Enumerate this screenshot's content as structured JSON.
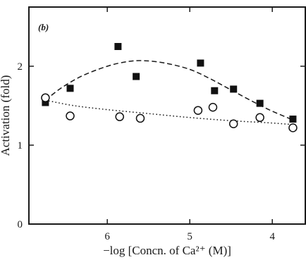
{
  "chart_data": {
    "type": "scatter",
    "panel_label": "(b)",
    "xlabel": "−log [Concn. of Ca²⁺ (M)]",
    "ylabel": "Activation (fold)",
    "x_reversed": true,
    "xlim": [
      6.95,
      3.6
    ],
    "ylim": [
      0,
      2.75
    ],
    "xticks": [
      6,
      5,
      4
    ],
    "xtick_labels": [
      "6",
      "5",
      "4"
    ],
    "yticks": [
      0,
      1,
      2
    ],
    "ytick_labels": [
      "0",
      "1",
      "2"
    ],
    "grid": false,
    "legend": "none",
    "series": [
      {
        "marker": "filled-square",
        "fit_line": "dashed",
        "x": [
          6.75,
          6.45,
          5.87,
          5.65,
          4.87,
          4.7,
          4.47,
          4.15,
          3.75
        ],
        "y": [
          1.54,
          1.72,
          2.25,
          1.87,
          2.04,
          1.69,
          1.71,
          1.53,
          1.33
        ]
      },
      {
        "marker": "open-circle",
        "fit_line": "dotted",
        "x": [
          6.75,
          6.45,
          5.85,
          5.6,
          4.9,
          4.72,
          4.47,
          4.15,
          3.75
        ],
        "y": [
          1.6,
          1.37,
          1.36,
          1.34,
          1.44,
          1.48,
          1.27,
          1.35,
          1.22
        ]
      }
    ],
    "fits": [
      {
        "style": "dashed",
        "x": [
          6.75,
          6.55,
          6.3,
          6.0,
          5.75,
          5.55,
          5.3,
          5.0,
          4.75,
          4.5,
          4.25,
          4.0,
          3.75
        ],
        "y": [
          1.57,
          1.73,
          1.88,
          2.0,
          2.06,
          2.07,
          2.04,
          1.96,
          1.84,
          1.7,
          1.56,
          1.43,
          1.32
        ]
      },
      {
        "style": "dotted",
        "x": [
          6.75,
          6.4,
          6.0,
          5.5,
          5.0,
          4.5,
          4.0,
          3.75
        ],
        "y": [
          1.57,
          1.5,
          1.45,
          1.4,
          1.35,
          1.31,
          1.28,
          1.26
        ]
      }
    ]
  }
}
